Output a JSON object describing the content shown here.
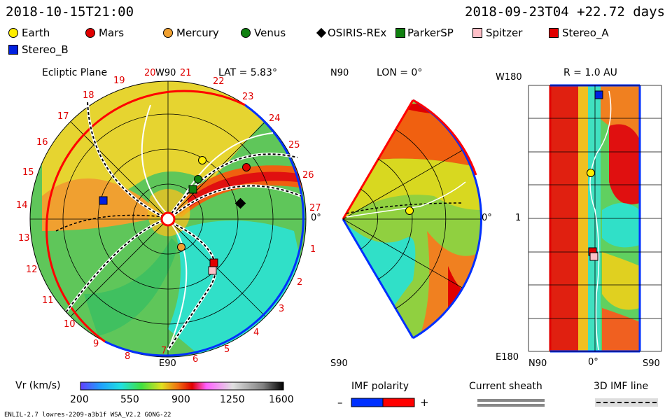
{
  "header": {
    "left_datetime": "2018-10-15T21:00",
    "right_datetime": "2018-09-23T04 +22.72 days"
  },
  "legend": [
    {
      "label": "Earth",
      "marker": "circle",
      "color": "#ffee00"
    },
    {
      "label": "Mars",
      "marker": "circle",
      "color": "#e00000"
    },
    {
      "label": "Mercury",
      "marker": "circle",
      "color": "#f0a030"
    },
    {
      "label": "Venus",
      "marker": "circle",
      "color": "#108010"
    },
    {
      "label": "OSIRIS-REx",
      "marker": "diamond",
      "color": "#000000"
    },
    {
      "label": "ParkerSP",
      "marker": "square",
      "color": "#108010"
    },
    {
      "label": "Spitzer",
      "marker": "square",
      "color": "#ffc0c8"
    },
    {
      "label": "Stereo_A",
      "marker": "square",
      "color": "#e00000"
    },
    {
      "label": "Stereo_B",
      "marker": "square",
      "color": "#0020e0"
    }
  ],
  "panels": {
    "ecliptic": {
      "title": "Ecliptic Plane",
      "top_label": "W90",
      "lat_label": "LAT = 5.83°",
      "right_label": "0°",
      "bottom_label": "E90",
      "carrington_ticks": [
        "1",
        "2",
        "3",
        "4",
        "5",
        "6",
        "7",
        "8",
        "9",
        "10",
        "11",
        "12",
        "13",
        "14",
        "15",
        "16",
        "17",
        "18",
        "19",
        "20",
        "21",
        "22",
        "23",
        "24",
        "25",
        "26",
        "27"
      ]
    },
    "meridional": {
      "top_label": "N90",
      "lon_label": "LON = 0°",
      "right_label": "0°",
      "bottom_label": "S90"
    },
    "radial": {
      "r_label": "R = 1.0 AU",
      "top_left": "W180",
      "mid_left": "1",
      "bottom_left": "E180",
      "bottom_labels": [
        "N90",
        "0°",
        "S90"
      ]
    }
  },
  "colorbar": {
    "label": "Vr (km/s)",
    "ticks": [
      "200",
      "550",
      "900",
      "1250",
      "1600"
    ],
    "range": [
      200,
      1600
    ]
  },
  "imf_polarity": {
    "label": "IMF polarity",
    "minus": "–",
    "plus": "+"
  },
  "current_sheath": {
    "label": "Current sheath"
  },
  "imf_line": {
    "label": "3D IMF line"
  },
  "footer": "ENLIL-2.7 lowres-2209-a3b1f WSA_V2.2 GONG-22"
}
